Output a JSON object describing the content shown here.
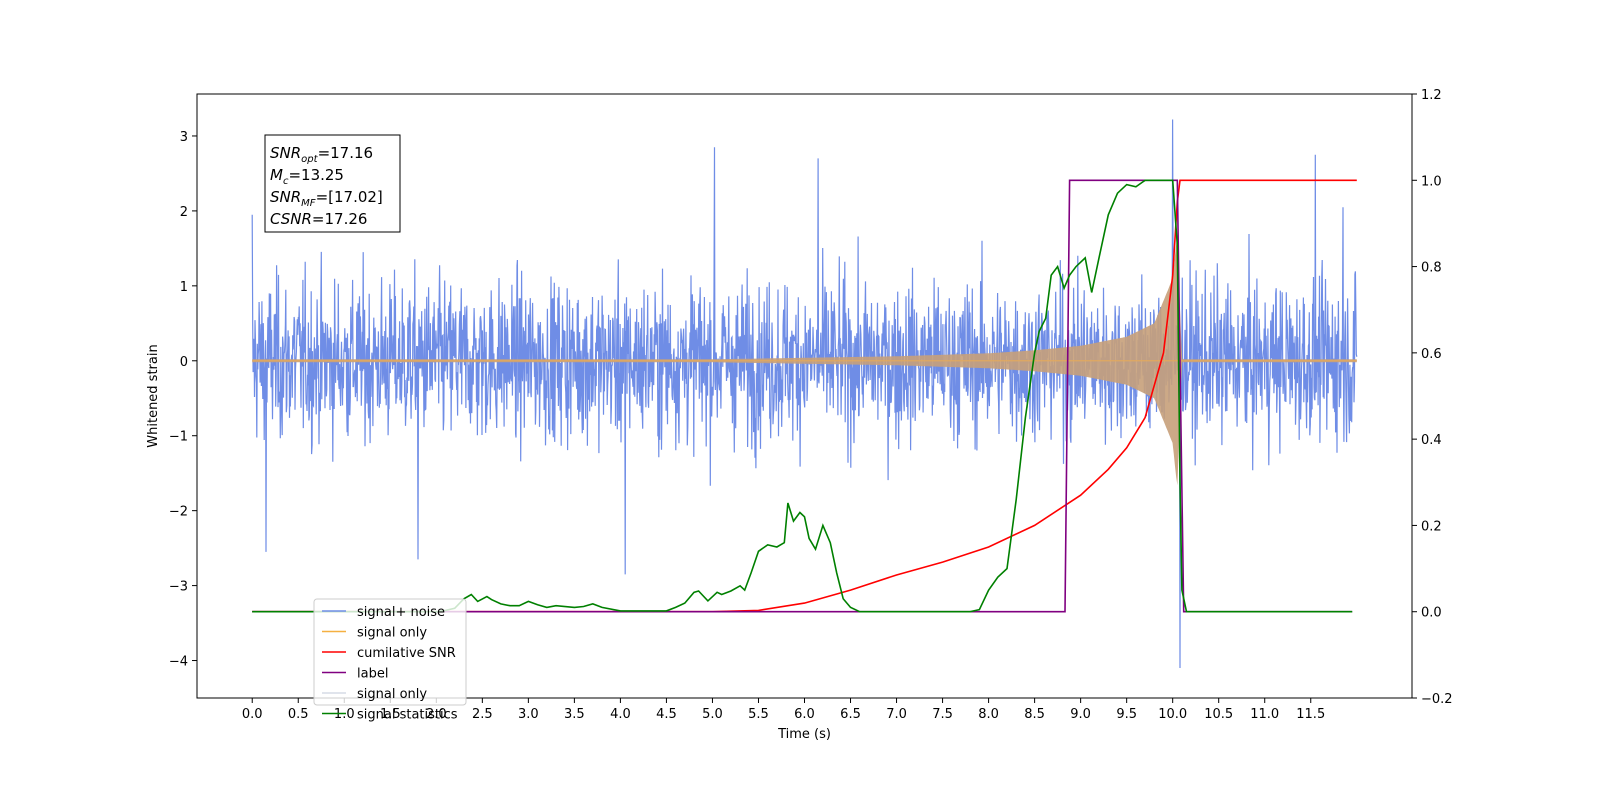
{
  "chart_data": {
    "type": "line",
    "xlabel": "Time (s)",
    "ylabel": "Whitened strain",
    "xlim": [
      -0.6,
      12.6
    ],
    "ylim": [
      -4.5,
      3.56
    ],
    "y2lim": [
      -0.2,
      1.2
    ],
    "x_ticks": [
      0.0,
      0.5,
      1.0,
      1.5,
      2.0,
      2.5,
      3.0,
      3.5,
      4.0,
      4.5,
      5.0,
      5.5,
      6.0,
      6.5,
      7.0,
      7.5,
      8.0,
      8.5,
      9.0,
      9.5,
      10.0,
      10.5,
      11.0,
      11.5
    ],
    "x_tick_labels": [
      "0.0",
      "0.5",
      "1.0",
      "1.5",
      "2.0",
      "2.5",
      "3.0",
      "3.5",
      "4.0",
      "4.5",
      "5.0",
      "5.5",
      "6.0",
      "6.5",
      "7.0",
      "7.5",
      "8.0",
      "8.5",
      "9.0",
      "9.5",
      "10.0",
      "10.5",
      "11.0",
      "11.5"
    ],
    "y_ticks": [
      -4,
      -3,
      -2,
      -1,
      0,
      1,
      2,
      3
    ],
    "y_tick_labels": [
      "−4",
      "−3",
      "−2",
      "−1",
      "0",
      "1",
      "2",
      "3"
    ],
    "y2_ticks": [
      -0.2,
      0.0,
      0.2,
      0.4,
      0.6,
      0.8,
      1.0,
      1.2
    ],
    "y2_tick_labels": [
      "−0.2",
      "0.0",
      "0.2",
      "0.4",
      "0.6",
      "0.8",
      "1.0",
      "1.2"
    ],
    "grid": false,
    "legend_position": "lower-left",
    "legend": [
      {
        "name": "signal+ noise",
        "color": "#6f8de6"
      },
      {
        "name": "signal only",
        "color": "#f5b041"
      },
      {
        "name": "cumilative SNR",
        "color": "#ff0000"
      },
      {
        "name": "label",
        "color": "#800080"
      },
      {
        "name": "signal only",
        "color": "#d6dbe6"
      },
      {
        "name": "signal statistics",
        "color": "#008000"
      }
    ],
    "annotation": [
      {
        "main": "SNR",
        "sub": "opt",
        "value": "=17.16"
      },
      {
        "main": "M",
        "sub": "c",
        "value": "=13.25"
      },
      {
        "main": "SNR",
        "sub": "MF",
        "value": "=[17.02]"
      },
      {
        "main": "CSNR",
        "sub": "",
        "value": "=17.26"
      }
    ],
    "series": [
      {
        "key": "noise",
        "color": "#6f8de6",
        "axis": "left",
        "x_range": [
          0.0,
          12.0
        ],
        "typical_amplitude": 1.2,
        "peaks": [
          [
            0.0,
            1.95
          ],
          [
            0.15,
            -2.55
          ],
          [
            1.8,
            -2.65
          ],
          [
            4.05,
            -2.85
          ],
          [
            5.02,
            2.85
          ],
          [
            6.15,
            2.7
          ],
          [
            10.0,
            3.22
          ],
          [
            10.08,
            -4.1
          ],
          [
            11.55,
            2.75
          ],
          [
            11.85,
            2.05
          ]
        ]
      },
      {
        "key": "signal",
        "color": "#f5b041",
        "axis": "left",
        "x_range": [
          0.0,
          12.0
        ],
        "envelope": [
          [
            0.0,
            0.02
          ],
          [
            5.0,
            0.02
          ],
          [
            6.0,
            0.04
          ],
          [
            7.0,
            0.06
          ],
          [
            8.0,
            0.1
          ],
          [
            8.5,
            0.14
          ],
          [
            9.0,
            0.2
          ],
          [
            9.5,
            0.32
          ],
          [
            9.8,
            0.5
          ],
          [
            10.0,
            1.1
          ],
          [
            10.05,
            1.7
          ],
          [
            10.1,
            0.02
          ],
          [
            12.0,
            0.02
          ]
        ]
      },
      {
        "key": "csnr",
        "color": "#ff0000",
        "axis": "right",
        "points": [
          [
            0.0,
            0.0
          ],
          [
            5.0,
            0.0
          ],
          [
            5.5,
            0.003
          ],
          [
            6.0,
            0.02
          ],
          [
            6.5,
            0.05
          ],
          [
            7.0,
            0.085
          ],
          [
            7.5,
            0.115
          ],
          [
            8.0,
            0.15
          ],
          [
            8.5,
            0.2
          ],
          [
            9.0,
            0.27
          ],
          [
            9.3,
            0.33
          ],
          [
            9.5,
            0.38
          ],
          [
            9.7,
            0.45
          ],
          [
            9.9,
            0.6
          ],
          [
            10.0,
            0.78
          ],
          [
            10.05,
            0.95
          ],
          [
            10.08,
            1.0
          ],
          [
            12.0,
            1.0
          ]
        ]
      },
      {
        "key": "label",
        "color": "#800080",
        "axis": "right",
        "points": [
          [
            0.0,
            0.0
          ],
          [
            8.83,
            0.0
          ],
          [
            8.88,
            1.0
          ],
          [
            10.05,
            1.0
          ],
          [
            10.12,
            0.0
          ],
          [
            11.95,
            0.0
          ]
        ]
      },
      {
        "key": "stats",
        "color": "#008000",
        "axis": "right",
        "points": [
          [
            0.0,
            0.0
          ],
          [
            2.0,
            0.0
          ],
          [
            2.1,
            0.003
          ],
          [
            2.2,
            0.008
          ],
          [
            2.3,
            0.03
          ],
          [
            2.38,
            0.04
          ],
          [
            2.45,
            0.024
          ],
          [
            2.55,
            0.035
          ],
          [
            2.6,
            0.028
          ],
          [
            2.7,
            0.018
          ],
          [
            2.8,
            0.014
          ],
          [
            2.9,
            0.014
          ],
          [
            3.0,
            0.024
          ],
          [
            3.1,
            0.016
          ],
          [
            3.2,
            0.01
          ],
          [
            3.3,
            0.014
          ],
          [
            3.5,
            0.01
          ],
          [
            3.6,
            0.012
          ],
          [
            3.7,
            0.018
          ],
          [
            3.8,
            0.01
          ],
          [
            4.0,
            0.002
          ],
          [
            4.5,
            0.002
          ],
          [
            4.6,
            0.01
          ],
          [
            4.7,
            0.02
          ],
          [
            4.8,
            0.045
          ],
          [
            4.85,
            0.048
          ],
          [
            4.95,
            0.025
          ],
          [
            5.05,
            0.045
          ],
          [
            5.1,
            0.04
          ],
          [
            5.2,
            0.048
          ],
          [
            5.3,
            0.06
          ],
          [
            5.35,
            0.05
          ],
          [
            5.42,
            0.09
          ],
          [
            5.5,
            0.14
          ],
          [
            5.6,
            0.155
          ],
          [
            5.7,
            0.15
          ],
          [
            5.78,
            0.16
          ],
          [
            5.82,
            0.252
          ],
          [
            5.88,
            0.21
          ],
          [
            5.95,
            0.23
          ],
          [
            6.0,
            0.22
          ],
          [
            6.05,
            0.17
          ],
          [
            6.12,
            0.145
          ],
          [
            6.2,
            0.2
          ],
          [
            6.28,
            0.16
          ],
          [
            6.35,
            0.09
          ],
          [
            6.42,
            0.03
          ],
          [
            6.5,
            0.01
          ],
          [
            6.6,
            0.0
          ],
          [
            7.8,
            0.0
          ],
          [
            7.9,
            0.005
          ],
          [
            8.0,
            0.05
          ],
          [
            8.1,
            0.08
          ],
          [
            8.2,
            0.1
          ],
          [
            8.3,
            0.26
          ],
          [
            8.4,
            0.45
          ],
          [
            8.5,
            0.6
          ],
          [
            8.55,
            0.65
          ],
          [
            8.62,
            0.68
          ],
          [
            8.68,
            0.78
          ],
          [
            8.75,
            0.8
          ],
          [
            8.82,
            0.75
          ],
          [
            8.88,
            0.78
          ],
          [
            8.95,
            0.8
          ],
          [
            9.05,
            0.82
          ],
          [
            9.12,
            0.74
          ],
          [
            9.2,
            0.82
          ],
          [
            9.3,
            0.92
          ],
          [
            9.4,
            0.97
          ],
          [
            9.5,
            0.99
          ],
          [
            9.6,
            0.985
          ],
          [
            9.7,
            1.0
          ],
          [
            10.0,
            1.0
          ],
          [
            10.05,
            0.85
          ],
          [
            10.08,
            0.3
          ],
          [
            10.1,
            0.05
          ],
          [
            10.15,
            0.0
          ],
          [
            11.95,
            0.0
          ]
        ]
      }
    ]
  }
}
